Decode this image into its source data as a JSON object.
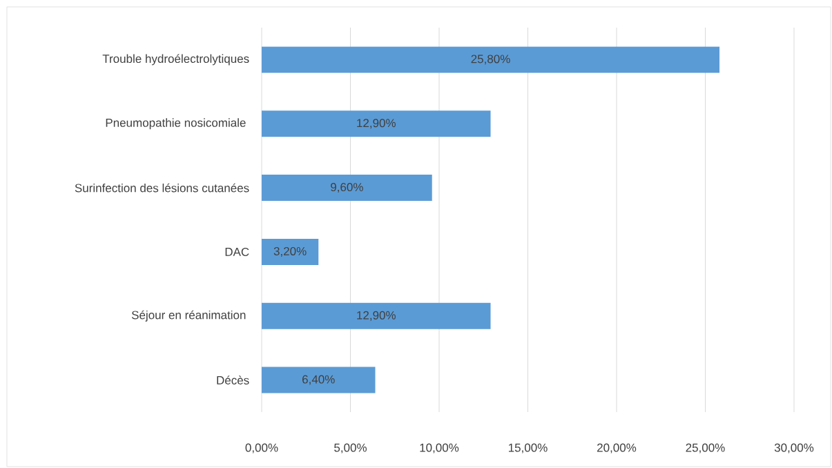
{
  "chart_data": {
    "type": "bar",
    "orientation": "horizontal",
    "categories": [
      "Trouble hydroélectrolytiques",
      "Pneumopathie nosicomiale ",
      "Surinfection des lésions cutanées",
      "DAC",
      "Séjour en réanimation ",
      "Décès"
    ],
    "values": [
      25.8,
      12.9,
      9.6,
      3.2,
      12.9,
      6.4
    ],
    "value_labels": [
      "25,80%",
      "12,90%",
      "9,60%",
      "3,20%",
      "12,90%",
      "6,40%"
    ],
    "color": "#5b9bd5",
    "xlim": [
      0,
      30
    ],
    "xticks": [
      {
        "value": 0,
        "label": "0,00%"
      },
      {
        "value": 5,
        "label": "5,00%"
      },
      {
        "value": 10,
        "label": "10,00%"
      },
      {
        "value": 15,
        "label": "15,00%"
      },
      {
        "value": 20,
        "label": "20,00%"
      },
      {
        "value": 25,
        "label": "25,00%"
      },
      {
        "value": 30,
        "label": "30,00%"
      }
    ],
    "grid": "x"
  }
}
